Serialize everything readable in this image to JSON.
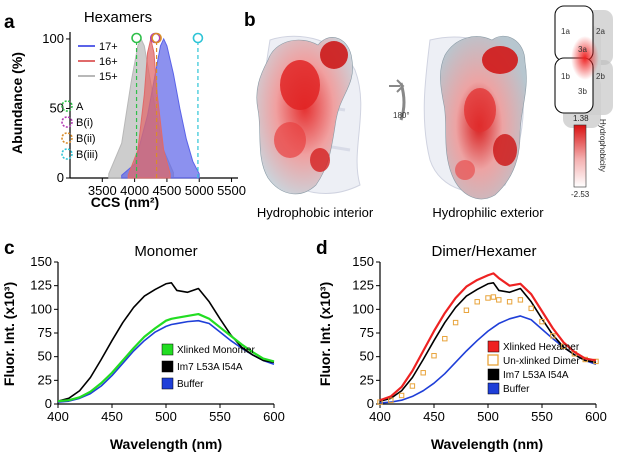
{
  "panels": {
    "a": {
      "label": "a",
      "title": "Hexamers",
      "xlabel": "CCS (nm²)",
      "ylabel": "Abundance (%)",
      "xticks": [
        "3500",
        "4000",
        "4500",
        "5000",
        "5500"
      ],
      "yticks": [
        "0",
        "50",
        "100"
      ],
      "xlim": [
        3000,
        5600
      ],
      "ylim": [
        0,
        105
      ],
      "series": [
        {
          "name": "17+",
          "color": "#5b63e8",
          "center": 4440,
          "sigma": 230,
          "peak": 100
        },
        {
          "name": "16+",
          "color": "#e06a6a",
          "center": 4260,
          "sigma": 120,
          "peak": 100
        },
        {
          "name": "15+",
          "color": "#b8b8b8",
          "center": 4100,
          "sigma": 190,
          "peak": 100
        }
      ],
      "markers": [
        {
          "name": "A",
          "x": 4030,
          "color": "#2fbf4a"
        },
        {
          "name": "B(i)",
          "x": 4320,
          "color": "#b23ab5"
        },
        {
          "name": "B(ii)",
          "x": 4340,
          "color": "#d98c2a"
        },
        {
          "name": "B(iii)",
          "x": 4980,
          "color": "#2ec4d6"
        }
      ]
    },
    "b": {
      "label": "b",
      "caption_left": "Hydrophobic interior",
      "caption_right": "Hydrophilic exterior",
      "rotation": "180°",
      "cbar_max": "1.38",
      "cbar_min": "-2.53",
      "cbar_title": "Hydrophobicity",
      "schematic_labels": [
        "1a",
        "2a",
        "3a",
        "1b",
        "2b",
        "3b"
      ]
    },
    "c": {
      "label": "c",
      "title": "Monomer",
      "xlabel": "Wavelength (nm)",
      "ylabel": "Fluor. Int. (x10³)",
      "xticks": [
        "400",
        "450",
        "500",
        "550",
        "600"
      ],
      "yticks": [
        "0",
        "25",
        "50",
        "75",
        "100",
        "125",
        "150"
      ],
      "xlim": [
        400,
        600
      ],
      "ylim": [
        0,
        150
      ],
      "legend": [
        {
          "name": "Xlinked Monomer",
          "color": "#22dd22",
          "marker": "square"
        },
        {
          "name": "Im7 L53A I54A",
          "color": "#000000",
          "marker": "square"
        },
        {
          "name": "Buffer",
          "color": "#1f3fd8",
          "marker": "square"
        }
      ]
    },
    "d": {
      "label": "d",
      "title": "Dimer/Hexamer",
      "xlabel": "Wavelength (nm)",
      "ylabel": "Fluor. Int. (x10³)",
      "xticks": [
        "400",
        "450",
        "500",
        "550",
        "600"
      ],
      "yticks": [
        "0",
        "25",
        "50",
        "75",
        "100",
        "125",
        "150"
      ],
      "xlim": [
        400,
        600
      ],
      "ylim": [
        0,
        150
      ],
      "legend": [
        {
          "name": "Xlinked Hexamer",
          "color": "#ee2222",
          "marker": "square"
        },
        {
          "name": "Un-xlinked Dimer",
          "color": "#e8a33a",
          "marker": "open-square"
        },
        {
          "name": "Im7 L53A I54A",
          "color": "#000000",
          "marker": "square"
        },
        {
          "name": "Buffer",
          "color": "#1f3fd8",
          "marker": "square"
        }
      ]
    }
  },
  "chart_data": [
    {
      "type": "area",
      "title": "Hexamers",
      "xlabel": "CCS (nm²)",
      "ylabel": "Abundance (%)",
      "xlim": [
        3000,
        5600
      ],
      "ylim": [
        0,
        105
      ],
      "series": [
        {
          "name": "17+",
          "x": [
            3800,
            4000,
            4200,
            4300,
            4400,
            4450,
            4500,
            4600,
            4700,
            4800,
            4900,
            5000
          ],
          "values": [
            2,
            10,
            45,
            70,
            95,
            100,
            95,
            75,
            50,
            28,
            12,
            3
          ]
        },
        {
          "name": "16+",
          "x": [
            3900,
            4050,
            4150,
            4200,
            4250,
            4300,
            4350,
            4450,
            4550
          ],
          "values": [
            2,
            20,
            60,
            90,
            100,
            90,
            60,
            20,
            3
          ]
        },
        {
          "name": "15+",
          "x": [
            3600,
            3800,
            3950,
            4050,
            4100,
            4150,
            4300,
            4450,
            4600
          ],
          "values": [
            3,
            25,
            70,
            95,
            100,
            95,
            55,
            20,
            4
          ]
        }
      ]
    },
    {
      "type": "line",
      "title": "Monomer",
      "xlabel": "Wavelength (nm)",
      "ylabel": "Fluor. Int. (x10³)",
      "xlim": [
        400,
        600
      ],
      "ylim": [
        0,
        150
      ],
      "x": [
        400,
        410,
        420,
        430,
        440,
        450,
        460,
        470,
        480,
        490,
        500,
        505,
        510,
        520,
        530,
        540,
        550,
        560,
        570,
        580,
        590,
        600
      ],
      "series": [
        {
          "name": "Xlinked Monomer",
          "values": [
            3,
            4,
            7,
            13,
            22,
            33,
            46,
            59,
            71,
            80,
            88,
            90,
            91,
            93,
            95,
            90,
            81,
            72,
            63,
            55,
            48,
            45
          ]
        },
        {
          "name": "Im7 L53A I54A",
          "values": [
            3,
            6,
            14,
            28,
            47,
            67,
            86,
            102,
            114,
            121,
            127,
            128,
            120,
            118,
            122,
            108,
            90,
            73,
            60,
            52,
            46,
            44
          ]
        },
        {
          "name": "Buffer",
          "values": [
            2,
            3,
            6,
            11,
            19,
            30,
            43,
            56,
            67,
            76,
            82,
            84,
            85,
            87,
            88,
            85,
            76,
            67,
            59,
            52,
            46,
            42
          ]
        }
      ]
    },
    {
      "type": "line",
      "title": "Dimer/Hexamer",
      "xlabel": "Wavelength (nm)",
      "ylabel": "Fluor. Int. (x10³)",
      "xlim": [
        400,
        600
      ],
      "ylim": [
        0,
        150
      ],
      "x": [
        400,
        410,
        420,
        430,
        440,
        450,
        460,
        470,
        480,
        490,
        500,
        505,
        510,
        520,
        530,
        540,
        550,
        560,
        570,
        580,
        590,
        600
      ],
      "series": [
        {
          "name": "Xlinked Hexamer",
          "values": [
            4,
            8,
            18,
            35,
            56,
            77,
            96,
            112,
            124,
            131,
            136,
            138,
            133,
            125,
            127,
            116,
            98,
            80,
            65,
            55,
            48,
            46
          ]
        },
        {
          "name": "Un-xlinked Dimer",
          "values": [
            2,
            4,
            9,
            19,
            33,
            51,
            69,
            86,
            99,
            108,
            112,
            113,
            110,
            108,
            110,
            101,
            87,
            72,
            61,
            53,
            47,
            45
          ]
        },
        {
          "name": "Im7 L53A I54A",
          "values": [
            3,
            6,
            14,
            28,
            47,
            67,
            86,
            102,
            114,
            121,
            127,
            128,
            120,
            118,
            122,
            108,
            90,
            73,
            60,
            52,
            46,
            44
          ]
        },
        {
          "name": "Buffer",
          "values": [
            1,
            2,
            4,
            8,
            14,
            22,
            32,
            44,
            56,
            67,
            77,
            81,
            85,
            90,
            93,
            89,
            79,
            69,
            60,
            52,
            46,
            42
          ]
        }
      ]
    }
  ]
}
